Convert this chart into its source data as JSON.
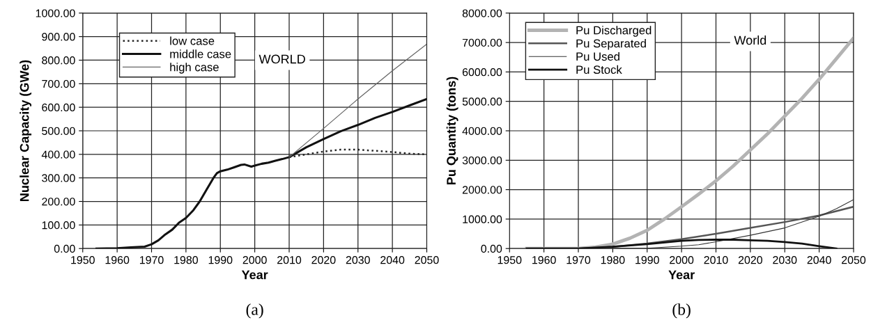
{
  "chart_data": [
    {
      "type": "line",
      "xlabel": "Year",
      "ylabel": "Nuclear Capacity (GWe)",
      "annotations": [
        "WORLD",
        "(a)"
      ],
      "legend": "top left",
      "grid": true,
      "marker": "none",
      "xlim": [
        1950,
        2050
      ],
      "xticks": [
        1950,
        1960,
        1970,
        1980,
        1990,
        2000,
        2010,
        2020,
        2030,
        2040,
        2050
      ],
      "ylim": [
        0,
        1000
      ],
      "yticks": [
        {
          "value": 0,
          "label": "0.00"
        },
        {
          "value": 100,
          "label": "100.00"
        },
        {
          "value": 200,
          "label": "200.00"
        },
        {
          "value": 300,
          "label": "300.00"
        },
        {
          "value": 400,
          "label": "400.00"
        },
        {
          "value": 500,
          "label": "500.00"
        },
        {
          "value": 600,
          "label": "600.00"
        },
        {
          "value": 700,
          "label": "700.00"
        },
        {
          "value": 800,
          "label": "800.00"
        },
        {
          "value": 900,
          "label": "900.00"
        },
        {
          "value": 1000,
          "label": "1000.00"
        }
      ],
      "series": [
        {
          "name": "low case",
          "color": "#222222",
          "line_style": "dotted",
          "x": [
            2010,
            2015,
            2020,
            2025,
            2030,
            2035,
            2040,
            2045,
            2050
          ],
          "values": [
            388,
            400,
            412,
            420,
            420,
            415,
            410,
            403,
            400
          ]
        },
        {
          "name": "middle case",
          "color": "#111111",
          "line_style": "solid",
          "x": [
            1954,
            1960,
            1964,
            1968,
            1970,
            1972,
            1974,
            1976,
            1978,
            1980,
            1982,
            1984,
            1986,
            1988,
            1989,
            1990,
            1992,
            1994,
            1996,
            1997,
            1999,
            2000,
            2002,
            2004,
            2006,
            2008,
            2010,
            2015,
            2020,
            2025,
            2030,
            2035,
            2040,
            2045,
            2050
          ],
          "values": [
            0,
            1,
            5,
            8,
            18,
            35,
            60,
            80,
            110,
            130,
            160,
            200,
            250,
            300,
            320,
            328,
            335,
            345,
            355,
            357,
            348,
            352,
            360,
            365,
            373,
            380,
            388,
            430,
            465,
            498,
            525,
            555,
            580,
            608,
            635
          ]
        },
        {
          "name": "high case",
          "color": "#666666",
          "line_style": "solid",
          "x": [
            2010,
            2020,
            2030,
            2040,
            2050
          ],
          "values": [
            388,
            510,
            635,
            755,
            868
          ]
        }
      ]
    },
    {
      "type": "line",
      "xlabel": "Year",
      "ylabel": "Pu Quantity (tons)",
      "annotations": [
        "World",
        "(b)"
      ],
      "legend": "top left",
      "grid": true,
      "marker": "none",
      "xlim": [
        1950,
        2050
      ],
      "xticks": [
        1950,
        1960,
        1970,
        1980,
        1990,
        2000,
        2010,
        2020,
        2030,
        2040,
        2050
      ],
      "ylim": [
        0,
        8000
      ],
      "yticks": [
        {
          "value": 0,
          "label": "0.00"
        },
        {
          "value": 1000,
          "label": "1000.00"
        },
        {
          "value": 2000,
          "label": "2000.00"
        },
        {
          "value": 3000,
          "label": "3000.00"
        },
        {
          "value": 4000,
          "label": "4000.00"
        },
        {
          "value": 5000,
          "label": "5000.00"
        },
        {
          "value": 6000,
          "label": "6000.00"
        },
        {
          "value": 7000,
          "label": "7000.00"
        },
        {
          "value": 8000,
          "label": "8000.00"
        }
      ],
      "series": [
        {
          "name": "Pu Discharged",
          "color": "#b3b3b3",
          "line_style": "solid",
          "x": [
            1955,
            1970,
            1975,
            1980,
            1985,
            1990,
            1995,
            2000,
            2005,
            2010,
            2015,
            2020,
            2025,
            2030,
            2035,
            2040,
            2045,
            2050
          ],
          "values": [
            0,
            0,
            50,
            150,
            350,
            620,
            1000,
            1420,
            1850,
            2300,
            2800,
            3350,
            3900,
            4500,
            5100,
            5750,
            6450,
            7150
          ]
        },
        {
          "name": "Pu Separated",
          "color": "#555555",
          "line_style": "solid",
          "x": [
            1955,
            1970,
            1980,
            1990,
            2000,
            2010,
            2020,
            2030,
            2040,
            2050
          ],
          "values": [
            0,
            0,
            60,
            170,
            320,
            500,
            700,
            900,
            1120,
            1420
          ]
        },
        {
          "name": "Pu Used",
          "color": "#333333",
          "line_style": "solid",
          "x": [
            1955,
            1990,
            2000,
            2005,
            2010,
            2020,
            2030,
            2040,
            2045,
            2050
          ],
          "values": [
            0,
            10,
            80,
            130,
            230,
            450,
            700,
            1100,
            1350,
            1660
          ]
        },
        {
          "name": "Pu Stock",
          "color": "#111111",
          "line_style": "solid",
          "x": [
            1955,
            1970,
            1980,
            1990,
            2000,
            2005,
            2010,
            2015,
            2020,
            2025,
            2030,
            2035,
            2040,
            2045
          ],
          "values": [
            0,
            0,
            60,
            150,
            260,
            290,
            300,
            300,
            280,
            260,
            220,
            170,
            80,
            0
          ]
        }
      ]
    }
  ]
}
